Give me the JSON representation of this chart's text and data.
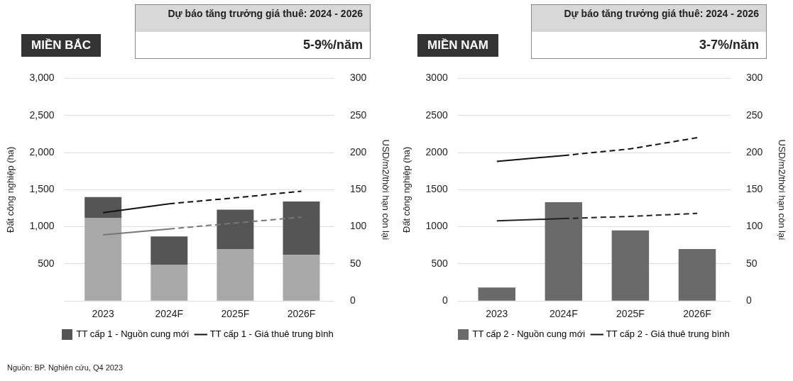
{
  "chart_data": [
    {
      "type": "bar",
      "title": "MIỀN BẮC",
      "subtitle": "Dự báo tăng trưởng giá thuê: 2024 - 2026",
      "annotations": [
        "5-9%/năm",
        "Nguồn: BP. Nghiên cứu, Q4 2023"
      ],
      "categories": [
        "2023",
        "2024F",
        "2025F",
        "2026F"
      ],
      "stacked": true,
      "grid": "y",
      "legend": "bottom",
      "marker": "none",
      "ylabel": "Đất công nghiệp (ha)",
      "y2label": "USD/m2/thời hạn còn lại",
      "ylim": [
        0,
        3000
      ],
      "yticks": [
        {
          "value": 500,
          "label": "500"
        },
        {
          "value": 1000,
          "label": "1,000"
        },
        {
          "value": 1500,
          "label": "1,500"
        },
        {
          "value": 2000,
          "label": "2,000"
        },
        {
          "value": 2500,
          "label": "2,500"
        },
        {
          "value": 3000,
          "label": "3,000"
        }
      ],
      "y2lim": [
        0,
        300
      ],
      "y2ticks": [
        0,
        50,
        100,
        150,
        200,
        250,
        300
      ],
      "series": [
        {
          "color": "#a8a8a8",
          "values": [
            1120,
            490,
            700,
            620
          ]
        },
        {
          "name": "TT cấp 1 - Nguồn cung mới",
          "color": "#555555",
          "values": [
            280,
            380,
            530,
            720
          ]
        },
        {
          "type": "line",
          "axis": "y2",
          "line_style": "solid",
          "name": "TT cấp 1 - Giá thuê trung bình",
          "color": "#111111",
          "values": [
            119,
            131,
            null,
            null
          ]
        },
        {
          "type": "line",
          "axis": "y2",
          "line_style": "dashed",
          "color": "#111111",
          "values": [
            null,
            131,
            139,
            148
          ]
        },
        {
          "type": "line",
          "axis": "y2",
          "line_style": "solid",
          "color": "#777777",
          "values": [
            89,
            97,
            null,
            null
          ]
        },
        {
          "type": "line",
          "axis": "y2",
          "line_style": "dashed",
          "color": "#777777",
          "values": [
            null,
            97,
            105,
            113
          ]
        }
      ]
    },
    {
      "type": "bar",
      "title": "MIỀN NAM",
      "subtitle": "Dự báo tăng trưởng giá thuê: 2024 - 2026",
      "annotations": [
        "3-7%/năm"
      ],
      "categories": [
        "2023",
        "2024F",
        "2025F",
        "2026F"
      ],
      "grid": "y",
      "legend": "bottom",
      "marker": "none",
      "ylabel": "Đất công nghiệp (ha)",
      "y2label": "USD/m2/thời hạn còn lại",
      "ylim": [
        0,
        3000
      ],
      "yticks": [
        0,
        500,
        1000,
        1500,
        2000,
        2500,
        3000
      ],
      "y2lim": [
        0,
        300
      ],
      "y2ticks": [
        0,
        50,
        100,
        150,
        200,
        250,
        300
      ],
      "series": [
        {
          "name": "TT cấp 2 - Nguồn cung mới",
          "color": "#6a6a6a",
          "values": [
            180,
            1330,
            950,
            700
          ]
        },
        {
          "type": "line",
          "axis": "y2",
          "line_style": "solid",
          "name": "TT cấp 2 - Giá thuê trung bình",
          "color": "#111111",
          "values": [
            188,
            196,
            null,
            null
          ]
        },
        {
          "type": "line",
          "axis": "y2",
          "line_style": "dashed",
          "color": "#111111",
          "values": [
            null,
            196,
            205,
            220
          ]
        },
        {
          "type": "line",
          "axis": "y2",
          "line_style": "solid",
          "color": "#222222",
          "values": [
            108,
            111,
            null,
            null
          ]
        },
        {
          "type": "line",
          "axis": "y2",
          "line_style": "dashed",
          "color": "#222222",
          "values": [
            null,
            111,
            114,
            118
          ]
        }
      ]
    }
  ]
}
